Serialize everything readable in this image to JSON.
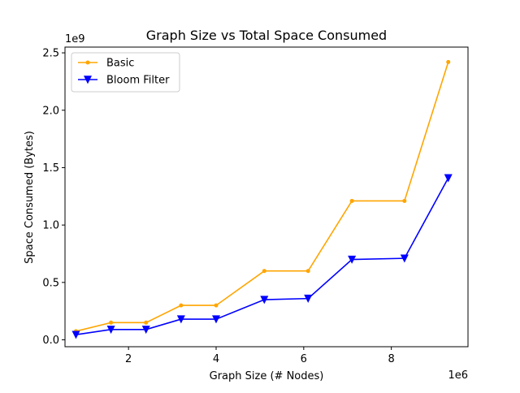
{
  "chart_data": {
    "type": "line",
    "title": "Graph Size vs Total Space Consumed",
    "xlabel": "Graph Size (# Nodes)",
    "ylabel": "Space Consumed (Bytes)",
    "x_offset_text": "1e6",
    "y_offset_text": "1e9",
    "xlim": [
      0.55,
      9.75
    ],
    "ylim": [
      -0.06,
      2.55
    ],
    "x_ticks": [
      2,
      4,
      6,
      8
    ],
    "x_tick_labels": [
      "2",
      "4",
      "6",
      "8"
    ],
    "y_ticks": [
      0.0,
      0.5,
      1.0,
      1.5,
      2.0,
      2.5
    ],
    "y_tick_labels": [
      "0.0",
      "0.5",
      "1.0",
      "1.5",
      "2.0",
      "2.5"
    ],
    "grid": false,
    "legend_position": "top-left",
    "series": [
      {
        "name": "Basic",
        "color": "#ffa500",
        "marker": "point",
        "x": [
          0.8,
          1.6,
          2.4,
          3.2,
          4.0,
          5.1,
          6.1,
          7.1,
          8.3,
          9.3
        ],
        "y": [
          0.075,
          0.15,
          0.15,
          0.3,
          0.3,
          0.6,
          0.6,
          1.21,
          1.21,
          2.42
        ]
      },
      {
        "name": "Bloom Filter",
        "color": "#0000ff",
        "marker": "triangle-down",
        "x": [
          0.8,
          1.6,
          2.4,
          3.2,
          4.0,
          5.1,
          6.1,
          7.1,
          8.3,
          9.3
        ],
        "y": [
          0.045,
          0.09,
          0.09,
          0.18,
          0.18,
          0.35,
          0.36,
          0.7,
          0.71,
          1.41
        ]
      }
    ]
  }
}
